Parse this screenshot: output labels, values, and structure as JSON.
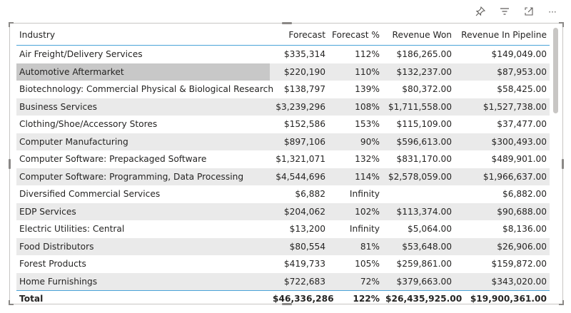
{
  "header": {
    "icons": [
      "pin-icon",
      "filter-icon",
      "focus-mode-icon",
      "more-options-icon"
    ]
  },
  "table": {
    "columns": [
      "Industry",
      "Forecast",
      "Forecast %",
      "Revenue Won",
      "Revenue In Pipeline"
    ],
    "rows": [
      {
        "industry": "Air Freight/Delivery Services",
        "forecast": "$335,314",
        "pct": "112%",
        "won": "$186,265.00",
        "pipeline": "$149,049.00"
      },
      {
        "industry": "Automotive Aftermarket",
        "forecast": "$220,190",
        "pct": "110%",
        "won": "$132,237.00",
        "pipeline": "$87,953.00"
      },
      {
        "industry": "Biotechnology: Commercial Physical & Biological Research",
        "forecast": "$138,797",
        "pct": "139%",
        "won": "$80,372.00",
        "pipeline": "$58,425.00"
      },
      {
        "industry": "Business Services",
        "forecast": "$3,239,296",
        "pct": "108%",
        "won": "$1,711,558.00",
        "pipeline": "$1,527,738.00"
      },
      {
        "industry": "Clothing/Shoe/Accessory Stores",
        "forecast": "$152,586",
        "pct": "153%",
        "won": "$115,109.00",
        "pipeline": "$37,477.00"
      },
      {
        "industry": "Computer Manufacturing",
        "forecast": "$897,106",
        "pct": "90%",
        "won": "$596,613.00",
        "pipeline": "$300,493.00"
      },
      {
        "industry": "Computer Software: Prepackaged Software",
        "forecast": "$1,321,071",
        "pct": "132%",
        "won": "$831,170.00",
        "pipeline": "$489,901.00"
      },
      {
        "industry": "Computer Software: Programming, Data Processing",
        "forecast": "$4,544,696",
        "pct": "114%",
        "won": "$2,578,059.00",
        "pipeline": "$1,966,637.00"
      },
      {
        "industry": "Diversified Commercial Services",
        "forecast": "$6,882",
        "pct": "Infinity",
        "won": "",
        "pipeline": "$6,882.00"
      },
      {
        "industry": "EDP Services",
        "forecast": "$204,062",
        "pct": "102%",
        "won": "$113,374.00",
        "pipeline": "$90,688.00"
      },
      {
        "industry": "Electric Utilities: Central",
        "forecast": "$13,200",
        "pct": "Infinity",
        "won": "$5,064.00",
        "pipeline": "$8,136.00"
      },
      {
        "industry": "Food Distributors",
        "forecast": "$80,554",
        "pct": "81%",
        "won": "$53,648.00",
        "pipeline": "$26,906.00"
      },
      {
        "industry": "Forest Products",
        "forecast": "$419,733",
        "pct": "105%",
        "won": "$259,861.00",
        "pipeline": "$159,872.00"
      },
      {
        "industry": "Home Furnishings",
        "forecast": "$722,683",
        "pct": "72%",
        "won": "$379,663.00",
        "pipeline": "$343,020.00"
      }
    ],
    "total": {
      "industry": "Total",
      "forecast": "$46,336,286",
      "pct": "122%",
      "won": "$26,435,925.00",
      "pipeline": "$19,900,361.00"
    }
  }
}
